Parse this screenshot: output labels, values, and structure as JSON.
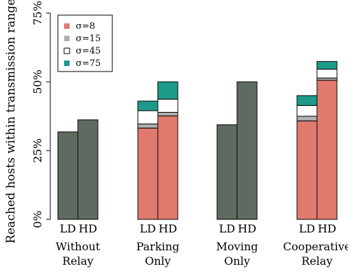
{
  "chart_data": {
    "type": "bar",
    "ylabel": "Reached hosts within transmission range",
    "ylim": [
      0,
      75
    ],
    "y_ticks": [
      {
        "value": 0,
        "label": "0%"
      },
      {
        "value": 25,
        "label": "25%"
      },
      {
        "value": 50,
        "label": "50%"
      },
      {
        "value": 75,
        "label": "75%"
      }
    ],
    "legend": {
      "placement": "top-left",
      "entries": [
        {
          "label": "σ=8",
          "color": "#E07A6E"
        },
        {
          "label": "σ=15",
          "color": "#B0B0B0"
        },
        {
          "label": "σ=45",
          "color": "#FFFFFF"
        },
        {
          "label": "σ=75",
          "color": "#1E9A8A"
        }
      ]
    },
    "colors": {
      "single": "#5F6B60",
      "outline": "#000000"
    },
    "groups": [
      {
        "name_lines": [
          "Without",
          "Relay"
        ],
        "bars": [
          {
            "label": "LD",
            "value": 31.8
          },
          {
            "label": "HD",
            "value": 36.2
          }
        ]
      },
      {
        "name_lines": [
          "Parking",
          "Only"
        ],
        "bars": [
          {
            "label": "LD",
            "stack": [
              33.2,
              1.5,
              4.8,
              3.5
            ]
          },
          {
            "label": "HD",
            "stack": [
              37.6,
              1.3,
              4.8,
              6.3
            ]
          }
        ]
      },
      {
        "name_lines": [
          "Moving",
          "Only"
        ],
        "bars": [
          {
            "label": "LD",
            "value": 34.4
          },
          {
            "label": "HD",
            "value": 50.0
          }
        ]
      },
      {
        "name_lines": [
          "Cooperative",
          "Relay"
        ],
        "bars": [
          {
            "label": "LD",
            "stack": [
              35.8,
              1.7,
              3.9,
              3.6
            ]
          },
          {
            "label": "HD",
            "stack": [
              50.6,
              0.8,
              3.2,
              2.8
            ]
          }
        ]
      }
    ]
  }
}
